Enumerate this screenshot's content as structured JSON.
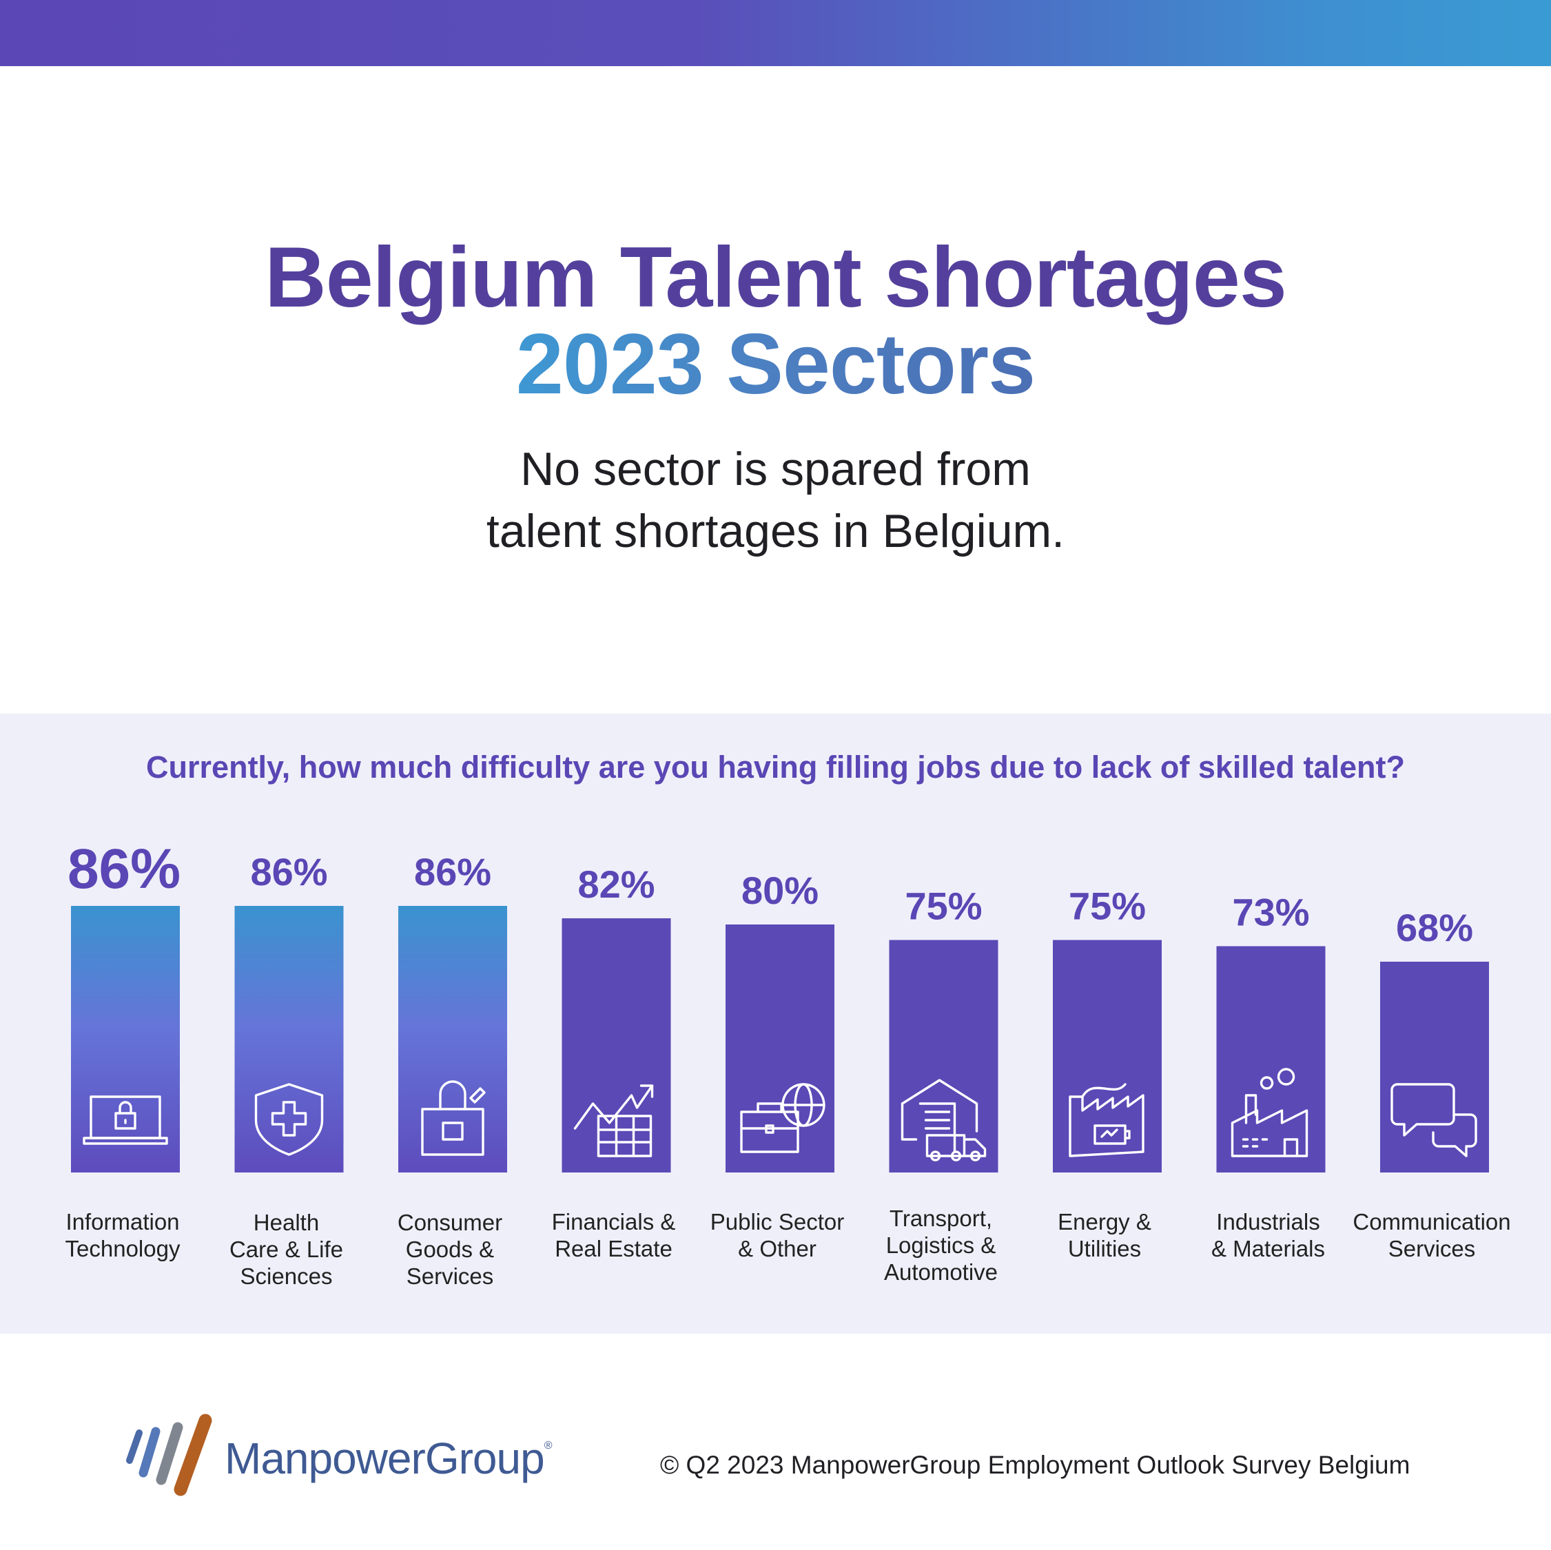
{
  "header": {
    "title_line1": "Belgium Talent shortages",
    "title_line2": "2023 Sectors",
    "subtitle_line1": "No sector is spared from",
    "subtitle_line2": "talent shortages in Belgium."
  },
  "chart_data": {
    "type": "bar",
    "title": "Currently, how much difficulty are you having filling jobs due to lack of skilled talent?",
    "categories": [
      [
        "Information",
        "Technology"
      ],
      [
        "Health",
        "Care & Life",
        "Sciences"
      ],
      [
        "Consumer",
        "Goods &",
        "Services"
      ],
      [
        "Financials &",
        "Real Estate"
      ],
      [
        "Public Sector",
        "& Other"
      ],
      [
        "Transport,",
        "Logistics &",
        "Automotive"
      ],
      [
        "Energy &",
        "Utilities"
      ],
      [
        "Industrials",
        "& Materials"
      ],
      [
        "Communication",
        "Services"
      ]
    ],
    "values": [
      86,
      86,
      86,
      82,
      80,
      75,
      75,
      73,
      68
    ],
    "value_labels": [
      "86%",
      "86%",
      "86%",
      "82%",
      "80%",
      "75%",
      "75%",
      "73%",
      "68%"
    ],
    "icons": [
      "laptop-lock-icon",
      "shield-cross-icon",
      "shopping-bag-icon",
      "chart-growth-icon",
      "briefcase-globe-icon",
      "warehouse-truck-icon",
      "factory-battery-icon",
      "factory-smoke-icon",
      "chat-bubbles-icon"
    ],
    "colors": {
      "highlight_top": "#3a93cf",
      "highlight_mid": "#6575d8",
      "highlight_bottom": "#5d4cbd",
      "bar": "#5b49b6",
      "value_text": "#5a46b4",
      "label_text": "#222222"
    },
    "highlighted_count": 3,
    "ylim": [
      0,
      86
    ]
  },
  "footer": {
    "brand": "ManpowerGroup",
    "brand_mark": "®",
    "copyright": "© Q2 2023 ManpowerGroup Employment Outlook Survey Belgium"
  }
}
